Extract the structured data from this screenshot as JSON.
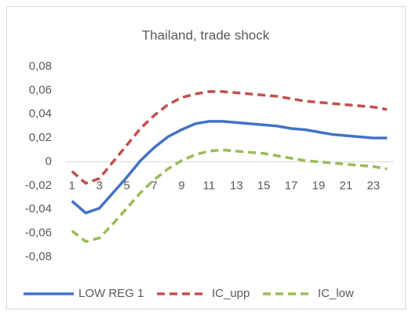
{
  "chart_data": {
    "type": "line",
    "title": "Thailand, trade shock",
    "categories": [
      "1",
      null,
      "3",
      null,
      "5",
      null,
      "7",
      null,
      "9",
      null,
      "11",
      null,
      "13",
      null,
      "15",
      null,
      "17",
      null,
      "19",
      null,
      "21",
      null,
      "23",
      null
    ],
    "ylim": [
      -0.08,
      0.08
    ],
    "yticks": [
      {
        "value": -0.08,
        "label": "-0,08"
      },
      {
        "value": -0.06,
        "label": "-0,06"
      },
      {
        "value": -0.04,
        "label": "-0,04"
      },
      {
        "value": -0.02,
        "label": "-0,02"
      },
      0,
      {
        "value": 0.02,
        "label": "0,02"
      },
      {
        "value": 0.04,
        "label": "0,04"
      },
      {
        "value": 0.06,
        "label": "0,06"
      },
      {
        "value": 0.08,
        "label": "0,08"
      }
    ],
    "grid": false,
    "legend": "bottom",
    "series": [
      {
        "name": "LOW REG 1",
        "color": "#4472c4",
        "dashed": false,
        "values": [
          -0.033,
          -0.043,
          -0.039,
          -0.026,
          -0.013,
          0.001,
          0.012,
          0.021,
          0.027,
          0.032,
          0.034,
          0.034,
          0.033,
          0.032,
          0.031,
          0.03,
          0.028,
          0.027,
          0.025,
          0.023,
          0.022,
          0.021,
          0.02,
          0.02
        ]
      },
      {
        "name": "IC_upp",
        "color": "#c0504d",
        "dashed": true,
        "values": [
          -0.008,
          -0.018,
          -0.014,
          0.0,
          0.014,
          0.028,
          0.039,
          0.048,
          0.054,
          0.057,
          0.059,
          0.059,
          0.058,
          0.057,
          0.056,
          0.055,
          0.053,
          0.051,
          0.05,
          0.049,
          0.048,
          0.047,
          0.046,
          0.044
        ]
      },
      {
        "name": "IC_low",
        "color": "#9bbb59",
        "dashed": true,
        "values": [
          -0.058,
          -0.067,
          -0.064,
          -0.052,
          -0.039,
          -0.026,
          -0.015,
          -0.006,
          0.001,
          0.006,
          0.009,
          0.01,
          0.009,
          0.008,
          0.007,
          0.005,
          0.003,
          0.001,
          0.0,
          -0.001,
          -0.002,
          -0.003,
          -0.004,
          -0.006
        ]
      }
    ]
  }
}
